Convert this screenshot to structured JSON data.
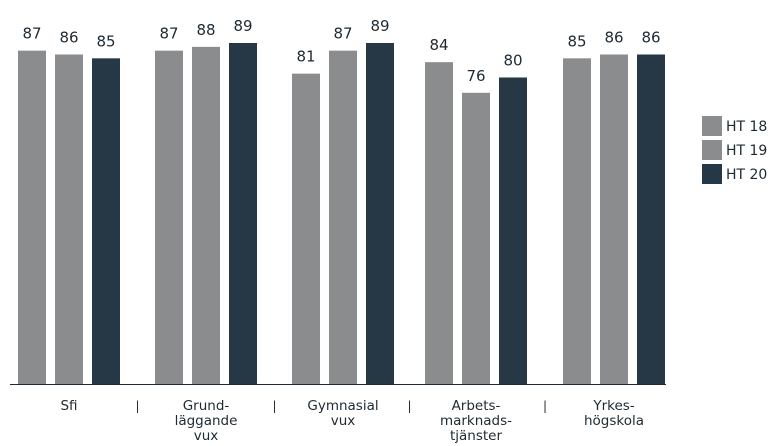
{
  "chart_data": {
    "type": "bar",
    "categories": [
      [
        "Sfi"
      ],
      [
        "Grund-",
        "läggande",
        "vux"
      ],
      [
        "Gymnasial",
        "vux"
      ],
      [
        "Arbets-",
        "marknads-",
        "tjänster"
      ],
      [
        "Yrkes-",
        "högskola"
      ]
    ],
    "series": [
      {
        "name": "HT 18",
        "color": "#8a8c8e",
        "values": [
          87,
          87,
          81,
          84,
          85
        ]
      },
      {
        "name": "HT 19",
        "color": "#8a8c8e",
        "values": [
          86,
          88,
          87,
          76,
          86
        ]
      },
      {
        "name": "HT 20",
        "color": "#263746",
        "values": [
          85,
          89,
          89,
          80,
          86
        ]
      }
    ],
    "category_separator": "|",
    "ylim": [
      0,
      100
    ],
    "grid": false,
    "legend_position": "right"
  }
}
